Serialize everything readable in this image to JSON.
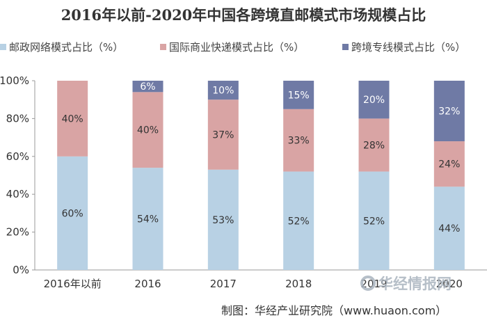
{
  "chart_data": {
    "type": "bar",
    "stacked": true,
    "title": "2016年以前-2020年中国各跨境直邮模式市场规模占比",
    "categories": [
      "2016年以前",
      "2016",
      "2017",
      "2018",
      "2019",
      "2020"
    ],
    "series": [
      {
        "name": "邮政网络模式占比（%）",
        "color": "#b8d1e4",
        "values": [
          60,
          54,
          53,
          52,
          52,
          44
        ],
        "labels": [
          "60%",
          "54%",
          "53%",
          "52%",
          "52%",
          "44%"
        ]
      },
      {
        "name": "国际商业快递模式占比（%）",
        "color": "#d9a4a4",
        "values": [
          40,
          40,
          37,
          33,
          28,
          24
        ],
        "labels": [
          "40%",
          "40%",
          "37%",
          "33%",
          "28%",
          "24%"
        ]
      },
      {
        "name": "跨境专线模式占比（%）",
        "color": "#6f7aa5",
        "values": [
          0,
          6,
          10,
          15,
          20,
          32
        ],
        "labels": [
          "",
          "6%",
          "10%",
          "15%",
          "20%",
          "32%"
        ]
      }
    ],
    "ylim": [
      0,
      100
    ],
    "yticks": [
      "0%",
      "20%",
      "40%",
      "60%",
      "80%",
      "100%"
    ],
    "grid": false,
    "legend_position": "top"
  },
  "source_text": "制图：华经产业研究院（www.huaon.com）",
  "watermark_text": "华经情报网"
}
